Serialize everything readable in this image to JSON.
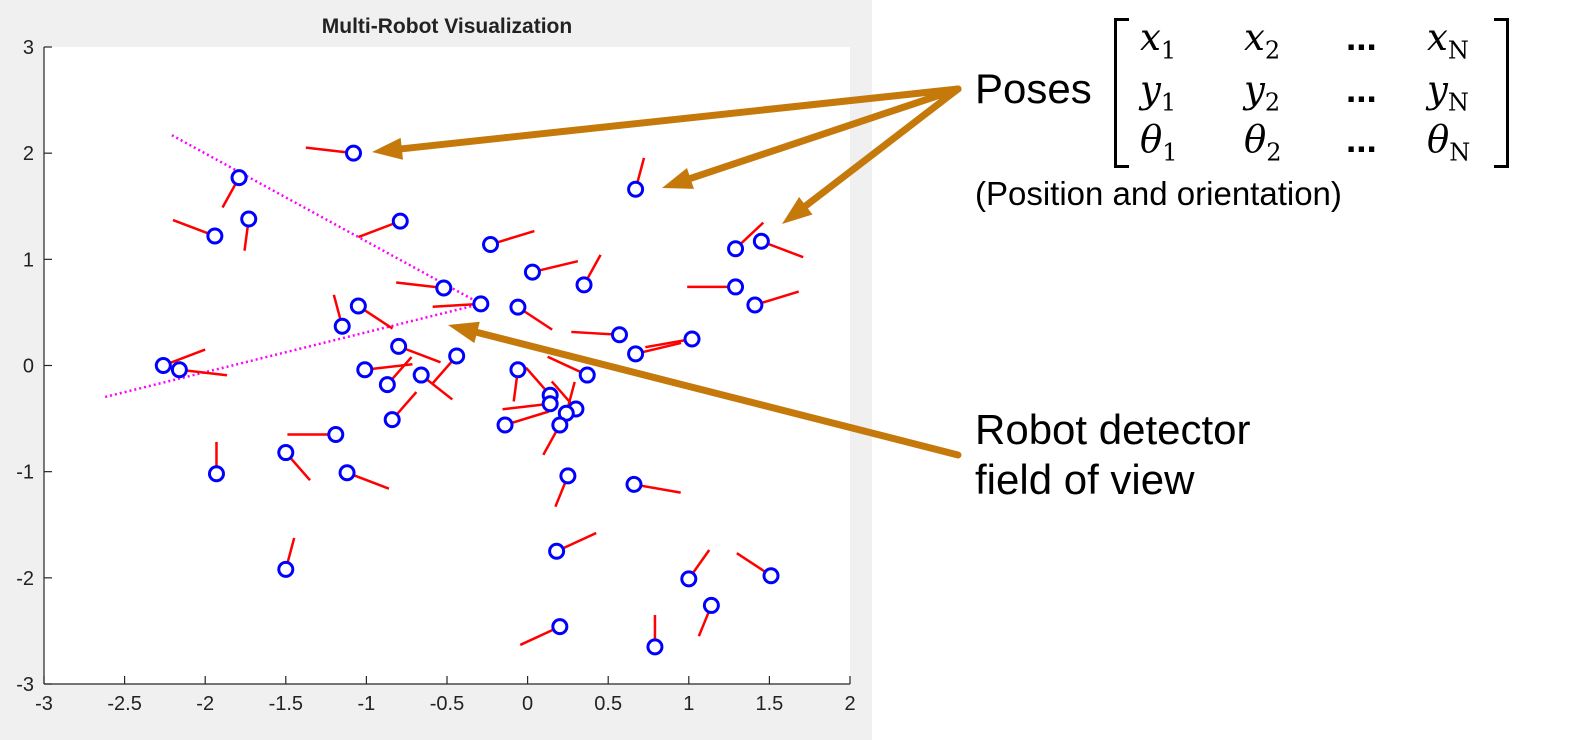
{
  "chart_data": {
    "type": "scatter",
    "title": "Multi-Robot Visualization",
    "xlim": [
      -3,
      2
    ],
    "ylim": [
      -3,
      3
    ],
    "xticks": [
      "-3",
      "-2.5",
      "-2",
      "-1.5",
      "-1",
      "-0.5",
      "0",
      "0.5",
      "1",
      "1.5",
      "2"
    ],
    "yticks": [
      "-3",
      "-2",
      "-1",
      "0",
      "1",
      "2",
      "3"
    ],
    "grid": false,
    "marker_color": "#0000ff",
    "heading_color": "#ff0000",
    "fov_color": "#ff00ff",
    "heading_length": 0.3,
    "robots": [
      {
        "x": -1.08,
        "y": 2.0,
        "theta_deg": 170
      },
      {
        "x": -1.79,
        "y": 1.77,
        "theta_deg": 250
      },
      {
        "x": -1.73,
        "y": 1.38,
        "theta_deg": 265
      },
      {
        "x": -1.94,
        "y": 1.22,
        "theta_deg": 150
      },
      {
        "x": -0.79,
        "y": 1.36,
        "theta_deg": 210
      },
      {
        "x": -0.52,
        "y": 0.73,
        "theta_deg": 170
      },
      {
        "x": -0.29,
        "y": 0.58,
        "theta_deg": 185
      },
      {
        "x": -1.05,
        "y": 0.56,
        "theta_deg": 315
      },
      {
        "x": -1.15,
        "y": 0.37,
        "theta_deg": 100
      },
      {
        "x": -0.8,
        "y": 0.18,
        "theta_deg": 330
      },
      {
        "x": -1.01,
        "y": -0.04,
        "theta_deg": 10
      },
      {
        "x": -0.87,
        "y": -0.18,
        "theta_deg": 60
      },
      {
        "x": -0.66,
        "y": -0.09,
        "theta_deg": 310
      },
      {
        "x": -0.44,
        "y": 0.09,
        "theta_deg": 240
      },
      {
        "x": -0.84,
        "y": -0.51,
        "theta_deg": 60
      },
      {
        "x": -2.26,
        "y": 0.0,
        "theta_deg": 30
      },
      {
        "x": -2.16,
        "y": -0.04,
        "theta_deg": 350
      },
      {
        "x": -1.93,
        "y": -1.02,
        "theta_deg": 90
      },
      {
        "x": -1.5,
        "y": -0.82,
        "theta_deg": 300
      },
      {
        "x": -1.19,
        "y": -0.65,
        "theta_deg": 180
      },
      {
        "x": -1.12,
        "y": -1.01,
        "theta_deg": 330
      },
      {
        "x": -1.5,
        "y": -1.92,
        "theta_deg": 80
      },
      {
        "x": -0.23,
        "y": 1.14,
        "theta_deg": 25
      },
      {
        "x": 0.03,
        "y": 0.88,
        "theta_deg": 20
      },
      {
        "x": 0.35,
        "y": 0.76,
        "theta_deg": 70
      },
      {
        "x": 0.67,
        "y": 1.66,
        "theta_deg": 80
      },
      {
        "x": -0.06,
        "y": 0.55,
        "theta_deg": 315
      },
      {
        "x": 0.57,
        "y": 0.29,
        "theta_deg": 175
      },
      {
        "x": 0.67,
        "y": 0.11,
        "theta_deg": 20
      },
      {
        "x": 1.02,
        "y": 0.25,
        "theta_deg": 195
      },
      {
        "x": 1.29,
        "y": 1.1,
        "theta_deg": 55
      },
      {
        "x": 1.45,
        "y": 1.17,
        "theta_deg": 330
      },
      {
        "x": 1.29,
        "y": 0.74,
        "theta_deg": 180
      },
      {
        "x": 1.41,
        "y": 0.57,
        "theta_deg": 25
      },
      {
        "x": -0.06,
        "y": -0.04,
        "theta_deg": 265
      },
      {
        "x": 0.37,
        "y": -0.09,
        "theta_deg": 145
      },
      {
        "x": 0.14,
        "y": -0.28,
        "theta_deg": 120
      },
      {
        "x": 0.14,
        "y": -0.36,
        "theta_deg": 190
      },
      {
        "x": 0.3,
        "y": -0.41,
        "theta_deg": 120
      },
      {
        "x": 0.24,
        "y": -0.45,
        "theta_deg": 80
      },
      {
        "x": -0.14,
        "y": -0.56,
        "theta_deg": 25
      },
      {
        "x": 0.2,
        "y": -0.56,
        "theta_deg": 250
      },
      {
        "x": 0.25,
        "y": -1.04,
        "theta_deg": 255
      },
      {
        "x": 0.66,
        "y": -1.12,
        "theta_deg": 345
      },
      {
        "x": 0.18,
        "y": -1.75,
        "theta_deg": 35
      },
      {
        "x": 1.0,
        "y": -2.01,
        "theta_deg": 65
      },
      {
        "x": 1.51,
        "y": -1.98,
        "theta_deg": 135
      },
      {
        "x": 1.14,
        "y": -2.26,
        "theta_deg": 255
      },
      {
        "x": 0.2,
        "y": -2.46,
        "theta_deg": 215
      },
      {
        "x": 0.79,
        "y": -2.65,
        "theta_deg": 90
      }
    ],
    "fov_lines": [
      {
        "x": [
          -0.29,
          -2.22
        ],
        "y": [
          0.58,
          2.18
        ]
      },
      {
        "x": [
          -0.29,
          -2.63
        ],
        "y": [
          0.58,
          -0.3
        ]
      }
    ]
  },
  "annotations": {
    "poses_label": "Poses",
    "poses_caption": "(Position and orientation)",
    "detector_label_line1": "Robot detector",
    "detector_label_line2": "field of view",
    "arrow_color": "#c5790b",
    "matrix": {
      "rows": [
        [
          {
            "sym": "x",
            "sub": "1"
          },
          {
            "sym": "x",
            "sub": "2"
          },
          {
            "dots": "..."
          },
          {
            "sym": "x",
            "sub": "N"
          }
        ],
        [
          {
            "sym": "y",
            "sub": "1"
          },
          {
            "sym": "y",
            "sub": "2"
          },
          {
            "dots": "..."
          },
          {
            "sym": "y",
            "sub": "N"
          }
        ],
        [
          {
            "sym": "θ",
            "sub": "1"
          },
          {
            "sym": "θ",
            "sub": "2"
          },
          {
            "dots": "..."
          },
          {
            "sym": "θ",
            "sub": "N"
          }
        ]
      ]
    }
  }
}
